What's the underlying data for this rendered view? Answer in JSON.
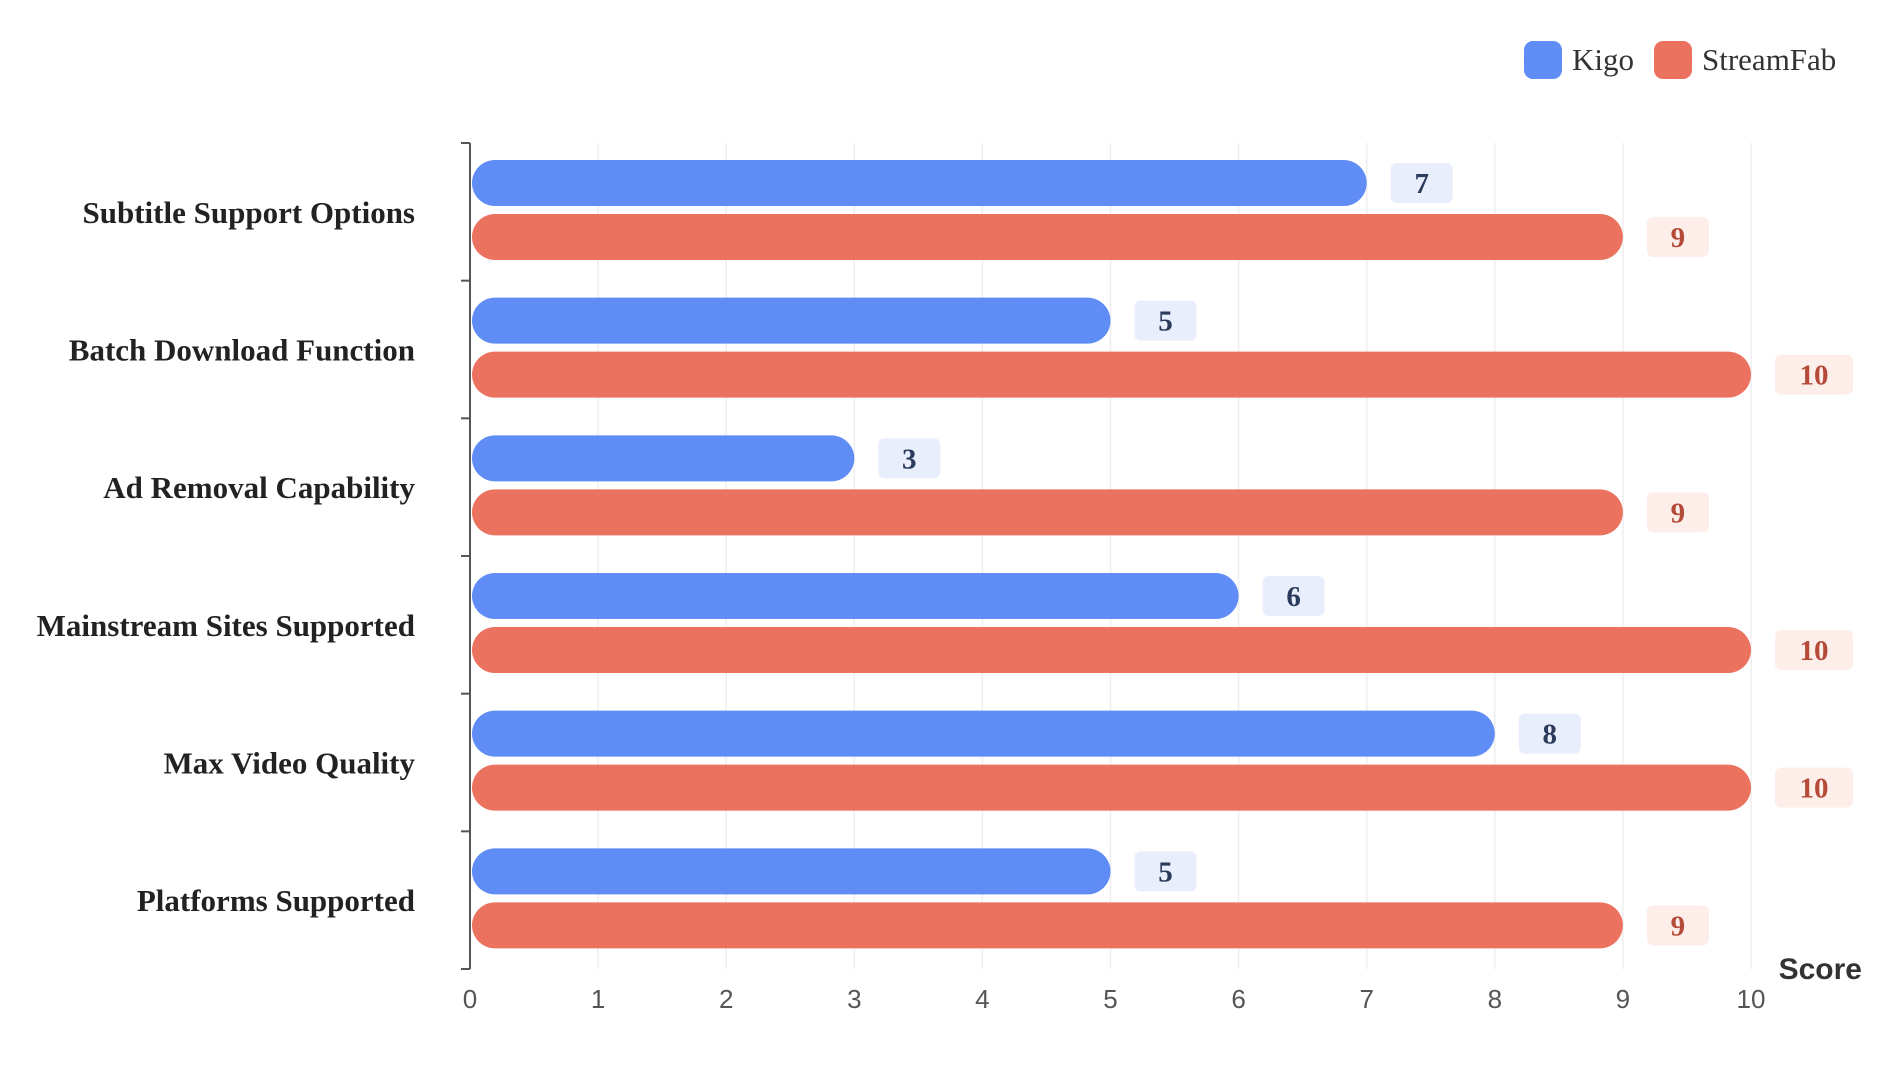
{
  "chart_data": {
    "type": "bar",
    "orientation": "horizontal",
    "categories": [
      "Subtitle Support Options",
      "Batch Download Function",
      "Ad Removal Capability",
      "Mainstream Sites Supported",
      "Max Video Quality",
      "Platforms Supported"
    ],
    "series": [
      {
        "name": "Kigo",
        "values": [
          7,
          5,
          3,
          6,
          8,
          5
        ]
      },
      {
        "name": "StreamFab",
        "values": [
          9,
          10,
          9,
          10,
          10,
          9
        ]
      }
    ],
    "xlabel": "Score",
    "ylabel": "",
    "xlim": [
      0,
      10
    ],
    "xticks": [
      "0",
      "1",
      "2",
      "3",
      "4",
      "5",
      "6",
      "7",
      "8",
      "9",
      "10"
    ],
    "grid": "vertical",
    "legend_position": "top-right",
    "colors": {
      "Kigo": "#5f8cf5",
      "StreamFab": "#ec7260",
      "Kigo_label_bg": "#e8eefb",
      "StreamFab_label_bg": "#fdeeea",
      "Kigo_label_text": "#2b3b5c",
      "StreamFab_label_text": "#b54a38"
    }
  }
}
